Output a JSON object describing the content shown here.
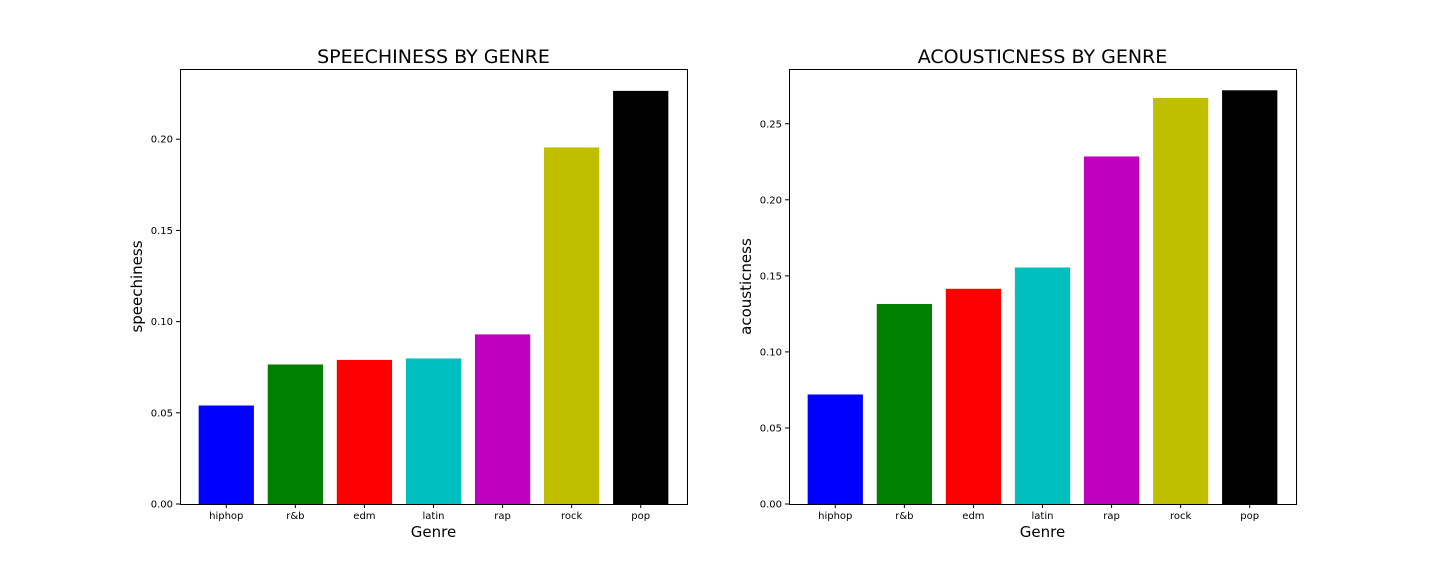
{
  "chart_data": [
    {
      "type": "bar",
      "title": "SPEECHINESS BY GENRE",
      "xlabel": "Genre",
      "ylabel": "speechiness",
      "categories": [
        "hiphop",
        "r&b",
        "edm",
        "latin",
        "rap",
        "rock",
        "pop"
      ],
      "values": [
        0.054,
        0.0765,
        0.079,
        0.0798,
        0.093,
        0.1955,
        0.2265
      ],
      "colors": [
        "#0000ff",
        "#008000",
        "#ff0000",
        "#00bfbf",
        "#bf00bf",
        "#bfbf00",
        "#000000"
      ],
      "ylim": [
        0,
        0.2385
      ],
      "yticks": [
        0.0,
        0.05,
        0.1,
        0.15,
        0.2
      ],
      "ytick_labels": [
        "0.00",
        "0.05",
        "0.10",
        "0.15",
        "0.20"
      ],
      "grid": false,
      "legend": "none"
    },
    {
      "type": "bar",
      "title": "ACOUSTICNESS BY GENRE",
      "xlabel": "Genre",
      "ylabel": "acousticness",
      "categories": [
        "hiphop",
        "r&b",
        "edm",
        "latin",
        "rap",
        "rock",
        "pop"
      ],
      "values": [
        0.072,
        0.1315,
        0.1415,
        0.1555,
        0.2285,
        0.267,
        0.272
      ],
      "colors": [
        "#0000ff",
        "#008000",
        "#ff0000",
        "#00bfbf",
        "#bf00bf",
        "#bfbf00",
        "#000000"
      ],
      "ylim": [
        0,
        0.286
      ],
      "yticks": [
        0.0,
        0.05,
        0.1,
        0.15,
        0.2,
        0.25
      ],
      "ytick_labels": [
        "0.00",
        "0.05",
        "0.10",
        "0.15",
        "0.20",
        "0.25"
      ],
      "grid": false,
      "legend": "none"
    }
  ]
}
